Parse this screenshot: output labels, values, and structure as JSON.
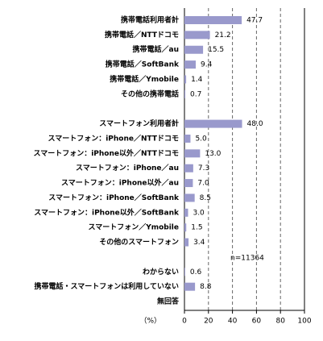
{
  "chart_data": {
    "type": "bar",
    "orientation": "horizontal",
    "categories": [
      "携帯電話利用者計",
      "携帯電話／NTTドコモ",
      "携帯電話／au",
      "携帯電話／SoftBank",
      "携帯電話／Ymobile",
      "その他の携帯電話",
      null,
      "スマートフォン利用者計",
      "スマートフォン：iPhone／NTTドコモ",
      "スマートフォン：iPhone以外／NTTドコモ",
      "スマートフォン：iPhone／au",
      "スマートフォン：iPhone以外／au",
      "スマートフォン：iPhone／SoftBank",
      "スマートフォン：iPhone以外／SoftBank",
      "スマートフォン／Ymobile",
      "その他のスマートフォン",
      null,
      "わからない",
      "携帯電話・スマートフォンは利用していない",
      "無回答"
    ],
    "values": [
      47.7,
      21.2,
      15.5,
      9.4,
      1.4,
      0.7,
      null,
      48.0,
      5.0,
      13.0,
      7.3,
      7.0,
      8.5,
      3.0,
      1.5,
      3.4,
      null,
      0.6,
      8.8,
      null
    ],
    "value_labels": [
      "47.7",
      "21.2",
      "15.5",
      "9.4",
      "1.4",
      "0.7",
      null,
      "48.0",
      "5.0",
      "13.0",
      "7.3",
      "7.0",
      "8.5",
      "3.0",
      "1.5",
      "3.4",
      null,
      "0.6",
      "8.8",
      null
    ],
    "color": "#9999cc",
    "xlim": [
      0,
      100
    ],
    "xticks": [
      0,
      20,
      40,
      60,
      80,
      100
    ],
    "x_label": "（%）",
    "annotation": "n=11364",
    "grid": true
  }
}
